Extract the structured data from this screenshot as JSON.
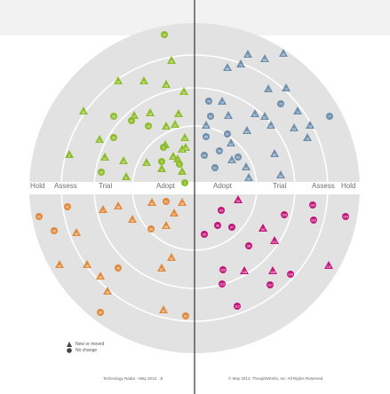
{
  "rings": {
    "hold": "Hold",
    "assess": "Assess",
    "trial": "Trial",
    "adopt": "Adopt"
  },
  "legend": {
    "new": "New or moved",
    "nochange": "No change"
  },
  "footer": {
    "left": "Technology Radar - May 2013",
    "page": "3",
    "right": "© May 2013, ThoughtWorks, Inc. All Rights Reserved."
  },
  "colors": {
    "techniques": "#8dbd2c",
    "tools": "#6f90ac",
    "platforms": "#e08a3c",
    "languages": "#c2177a",
    "disc": "#e2e2e2",
    "ring_line": "#ffffff",
    "axis": "#333333"
  },
  "blips": [
    {
      "n": "29",
      "q": "tl",
      "s": "c"
    },
    {
      "n": "30",
      "q": "tl",
      "s": "t"
    },
    {
      "n": "31",
      "q": "tl",
      "s": "t"
    },
    {
      "n": "32",
      "q": "tl",
      "s": "t"
    },
    {
      "n": "33",
      "q": "tl",
      "s": "t"
    },
    {
      "n": "34",
      "q": "tl",
      "s": "t"
    },
    {
      "n": "35",
      "q": "tl",
      "s": "t"
    },
    {
      "n": "26",
      "q": "tl",
      "s": "c"
    },
    {
      "n": "27",
      "q": "tl",
      "s": "t"
    },
    {
      "n": "28",
      "q": "tl",
      "s": "t"
    },
    {
      "n": "17",
      "q": "tl",
      "s": "c"
    },
    {
      "n": "18",
      "q": "tl",
      "s": "c"
    },
    {
      "n": "19",
      "q": "tl",
      "s": "t"
    },
    {
      "n": "20",
      "q": "tl",
      "s": "c"
    },
    {
      "n": "21",
      "q": "tl",
      "s": "t"
    },
    {
      "n": "22",
      "q": "tl",
      "s": "t"
    },
    {
      "n": "23",
      "q": "tl",
      "s": "t"
    },
    {
      "n": "24",
      "q": "tl",
      "s": "t"
    },
    {
      "n": "25",
      "q": "tl",
      "s": "t"
    },
    {
      "n": "14",
      "q": "tl",
      "s": "t"
    },
    {
      "n": "15",
      "q": "tl",
      "s": "t"
    },
    {
      "n": "16",
      "q": "tl",
      "s": "c"
    },
    {
      "n": "12",
      "q": "tl",
      "s": "t"
    },
    {
      "n": "13",
      "q": "tl",
      "s": "t"
    },
    {
      "n": "10",
      "q": "tl",
      "s": "t"
    },
    {
      "n": "11",
      "q": "tl",
      "s": "t"
    },
    {
      "n": "8",
      "q": "tl",
      "s": "t"
    },
    {
      "n": "9",
      "q": "tl",
      "s": "t"
    },
    {
      "n": "5",
      "q": "tl",
      "s": "t"
    },
    {
      "n": "6",
      "q": "tl",
      "s": "t"
    },
    {
      "n": "7",
      "q": "tl",
      "s": "t"
    },
    {
      "n": "4",
      "q": "tl",
      "s": "c"
    },
    {
      "n": "3",
      "q": "tl",
      "s": "c"
    },
    {
      "n": "2",
      "q": "tl",
      "s": "c"
    },
    {
      "n": "1",
      "q": "tl",
      "s": "c"
    },
    {
      "n": "66",
      "q": "tr",
      "s": "t"
    },
    {
      "n": "67",
      "q": "tr",
      "s": "t"
    },
    {
      "n": "68",
      "q": "tr",
      "s": "t"
    },
    {
      "n": "69",
      "q": "tr",
      "s": "t"
    },
    {
      "n": "70",
      "q": "tr",
      "s": "t"
    },
    {
      "n": "71",
      "q": "tr",
      "s": "t"
    },
    {
      "n": "72",
      "q": "tr",
      "s": "t"
    },
    {
      "n": "73",
      "q": "tr",
      "s": "c"
    },
    {
      "n": "74",
      "q": "tr",
      "s": "t"
    },
    {
      "n": "75",
      "q": "tr",
      "s": "t"
    },
    {
      "n": "76",
      "q": "tr",
      "s": "t"
    },
    {
      "n": "77",
      "q": "tr",
      "s": "c"
    },
    {
      "n": "78",
      "q": "tr",
      "s": "c"
    },
    {
      "n": "79",
      "q": "tr",
      "s": "t"
    },
    {
      "n": "80",
      "q": "tr",
      "s": "t"
    },
    {
      "n": "81",
      "q": "tr",
      "s": "t"
    },
    {
      "n": "82",
      "q": "tr",
      "s": "t"
    },
    {
      "n": "83",
      "q": "tr",
      "s": "t"
    },
    {
      "n": "84",
      "q": "tr",
      "s": "t"
    },
    {
      "n": "85",
      "q": "tr",
      "s": "c"
    },
    {
      "n": "60",
      "q": "tr",
      "s": "c"
    },
    {
      "n": "61",
      "q": "tr",
      "s": "c"
    },
    {
      "n": "62",
      "q": "tr",
      "s": "t"
    },
    {
      "n": "63",
      "q": "tr",
      "s": "c"
    },
    {
      "n": "64",
      "q": "tr",
      "s": "t"
    },
    {
      "n": "65",
      "q": "tr",
      "s": "t"
    },
    {
      "n": "56",
      "q": "tr",
      "s": "t"
    },
    {
      "n": "57",
      "q": "tr",
      "s": "c"
    },
    {
      "n": "58",
      "q": "tr",
      "s": "c"
    },
    {
      "n": "59",
      "q": "tr",
      "s": "t"
    },
    {
      "n": "52",
      "q": "tr",
      "s": "t"
    },
    {
      "n": "53",
      "q": "tr",
      "s": "c"
    },
    {
      "n": "54",
      "q": "tr",
      "s": "t"
    },
    {
      "n": "55",
      "q": "tr",
      "s": "t"
    },
    {
      "n": "41",
      "q": "bl",
      "s": "c"
    },
    {
      "n": "42",
      "q": "bl",
      "s": "c"
    },
    {
      "n": "43",
      "q": "bl",
      "s": "c"
    },
    {
      "n": "44",
      "q": "bl",
      "s": "t"
    },
    {
      "n": "45",
      "q": "bl",
      "s": "t"
    },
    {
      "n": "46",
      "q": "bl",
      "s": "t"
    },
    {
      "n": "47",
      "q": "bl",
      "s": "t"
    },
    {
      "n": "48",
      "q": "bl",
      "s": "t"
    },
    {
      "n": "49",
      "q": "bl",
      "s": "t"
    },
    {
      "n": "50",
      "q": "bl",
      "s": "t"
    },
    {
      "n": "51",
      "q": "bl",
      "s": "c"
    },
    {
      "n": "36",
      "q": "bl",
      "s": "t"
    },
    {
      "n": "37",
      "q": "bl",
      "s": "t"
    },
    {
      "n": "38",
      "q": "bl",
      "s": "t"
    },
    {
      "n": "39",
      "q": "bl",
      "s": "t"
    },
    {
      "n": "40",
      "q": "bl",
      "s": "c"
    },
    {
      "n": "86",
      "q": "bl",
      "s": "c"
    },
    {
      "n": "87",
      "q": "bl",
      "s": "t"
    },
    {
      "n": "88",
      "q": "bl",
      "s": "t"
    },
    {
      "n": "89",
      "q": "bl",
      "s": "c"
    },
    {
      "n": "90",
      "q": "bl",
      "s": "t"
    },
    {
      "n": "91",
      "q": "bl",
      "s": "c"
    },
    {
      "n": "92",
      "q": "bl",
      "s": "t"
    },
    {
      "n": "93",
      "q": "br",
      "s": "c"
    },
    {
      "n": "94",
      "q": "br",
      "s": "t"
    },
    {
      "n": "95",
      "q": "br",
      "s": "c"
    },
    {
      "n": "96",
      "q": "br",
      "s": "c"
    },
    {
      "n": "97",
      "q": "br",
      "s": "c"
    },
    {
      "n": "98",
      "q": "br",
      "s": "c"
    },
    {
      "n": "99",
      "q": "br",
      "s": "t"
    },
    {
      "n": "100",
      "q": "br",
      "s": "c"
    },
    {
      "n": "101",
      "q": "br",
      "s": "t"
    },
    {
      "n": "102",
      "q": "br",
      "s": "c"
    },
    {
      "n": "103",
      "q": "br",
      "s": "c"
    },
    {
      "n": "104",
      "q": "br",
      "s": "c"
    },
    {
      "n": "105",
      "q": "br",
      "s": "c"
    },
    {
      "n": "106",
      "q": "br",
      "s": "t"
    },
    {
      "n": "107",
      "q": "br",
      "s": "c"
    },
    {
      "n": "108",
      "q": "br",
      "s": "t"
    },
    {
      "n": "109",
      "q": "br",
      "s": "c"
    },
    {
      "n": "110",
      "q": "br",
      "s": "c"
    },
    {
      "n": "111",
      "q": "br",
      "s": "t"
    },
    {
      "n": "112",
      "q": "br",
      "s": "c"
    }
  ]
}
